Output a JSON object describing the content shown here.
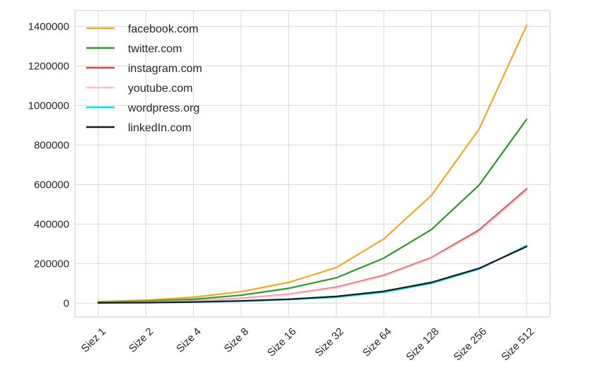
{
  "chart_data": {
    "type": "line",
    "title": "",
    "xlabel": "",
    "ylabel": "",
    "categories": [
      "Siez 1",
      "Size 2",
      "Size 4",
      "Size 8",
      "Size 16",
      "Size 32",
      "Size 64",
      "Size 128",
      "Size 256",
      "Size 512"
    ],
    "ylim": [
      -70000,
      1480000
    ],
    "yticks": [
      0,
      200000,
      400000,
      600000,
      800000,
      1000000,
      1200000,
      1400000
    ],
    "grid": true,
    "legend": "top-left",
    "series": [
      {
        "name": "facebook.com",
        "color": "#f5a623",
        "values": [
          8000,
          15000,
          30000,
          58000,
          105000,
          180000,
          325000,
          545000,
          880000,
          1405000
        ]
      },
      {
        "name": "twitter.com",
        "color": "#2a9a2a",
        "values": [
          5000,
          10000,
          20000,
          40000,
          75000,
          128000,
          228000,
          372000,
          597000,
          930000
        ]
      },
      {
        "name": "instagram.com",
        "color": "#c0504d",
        "values": [
          3000,
          6000,
          12000,
          24000,
          45000,
          80000,
          140000,
          230000,
          370000,
          578000
        ]
      },
      {
        "name": "youtube.com",
        "color": "#ffc0cb",
        "values": [
          2500,
          5500,
          11000,
          22000,
          43000,
          77000,
          136000,
          226000,
          362000,
          570000
        ]
      },
      {
        "name": "wordpress.org",
        "color": "#00e5ee",
        "values": [
          1000,
          2500,
          5000,
          10000,
          18000,
          30000,
          55000,
          100000,
          172000,
          292000
        ]
      },
      {
        "name": "linkedIn.com",
        "color": "#1a1a1a",
        "values": [
          1500,
          3000,
          6000,
          11500,
          20000,
          34000,
          60000,
          105000,
          176000,
          286000
        ]
      }
    ]
  }
}
